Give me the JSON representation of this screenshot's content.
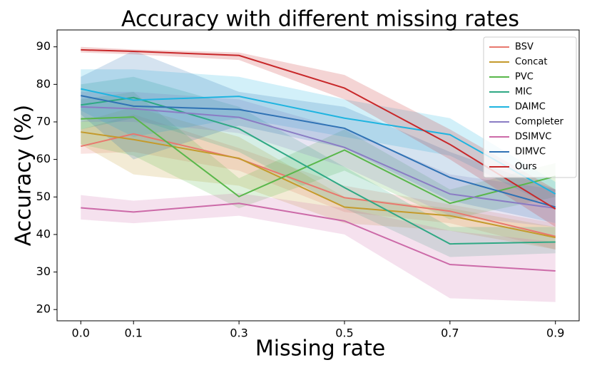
{
  "chart_data": {
    "type": "line",
    "title": "Accuracy with different missing rates",
    "x_label": "Missing rate",
    "y_label": "Accuracy (%)",
    "x": [
      0,
      0.1,
      0.3,
      0.5,
      0.7,
      0.9
    ],
    "xlim": [
      -0.045,
      0.945
    ],
    "xticks": [
      {
        "value": 0,
        "label": "0.0"
      },
      0.1,
      0.3,
      0.5,
      0.7,
      0.9
    ],
    "ylim": [
      17,
      94.5
    ],
    "yticks": [
      20,
      30,
      40,
      50,
      60,
      70,
      80,
      90
    ],
    "grid": false,
    "legend": "upper right",
    "series": [
      {
        "name": "BSV",
        "color": "#e8786e",
        "values": [
          63.5,
          66.8,
          60.2,
          49.8,
          46.2,
          39.5
        ],
        "lower": [
          61.5,
          62,
          57,
          46,
          43,
          36
        ],
        "upper": [
          68,
          72,
          63,
          53,
          48,
          43
        ]
      },
      {
        "name": "Concat",
        "color": "#c49a2c",
        "values": [
          67.3,
          65.3,
          60.3,
          47.3,
          45.0,
          39.2
        ],
        "lower": [
          64,
          56,
          53,
          43,
          41,
          36
        ],
        "upper": [
          70,
          74,
          66,
          50,
          47,
          42
        ]
      },
      {
        "name": "PVC",
        "color": "#59b74a",
        "values": [
          70.8,
          71.3,
          50.1,
          62.5,
          48.3,
          55.5
        ],
        "lower": [
          64,
          61,
          47,
          57,
          44,
          50
        ],
        "upper": [
          76,
          78,
          55,
          68,
          52,
          59
        ]
      },
      {
        "name": "MIC",
        "color": "#2fa884",
        "values": [
          74.5,
          76.5,
          68.2,
          52.5,
          37.5,
          38.0
        ],
        "lower": [
          68,
          71,
          62,
          47,
          34,
          35
        ],
        "upper": [
          80,
          82,
          74,
          58,
          42,
          42
        ]
      },
      {
        "name": "DAIMC",
        "color": "#1eb4e0",
        "values": [
          78.8,
          75.8,
          76.8,
          71.0,
          66.6,
          50.8
        ],
        "lower": [
          73,
          66,
          71,
          66,
          61,
          47
        ],
        "upper": [
          84,
          84,
          82,
          76,
          71,
          54
        ]
      },
      {
        "name": "Completer",
        "color": "#8a7cc4",
        "values": [
          74.0,
          73.5,
          71.2,
          63.2,
          50.8,
          47.0
        ],
        "lower": [
          70,
          70,
          67,
          58,
          45,
          42
        ],
        "upper": [
          78,
          78,
          76,
          68,
          56,
          52
        ]
      },
      {
        "name": "DSIMVC",
        "color": "#cc6aa8",
        "values": [
          47.1,
          46.0,
          48.3,
          43.6,
          32.0,
          30.3
        ],
        "lower": [
          44,
          43,
          45,
          40,
          23,
          22
        ],
        "upper": [
          50.5,
          49,
          51,
          47,
          41,
          38
        ]
      },
      {
        "name": "DIMVC",
        "color": "#2f72b4",
        "values": [
          77.0,
          74.2,
          73.3,
          68.3,
          55.2,
          47.3
        ],
        "lower": [
          72,
          60,
          69,
          63,
          49,
          43
        ],
        "upper": [
          82,
          89,
          78,
          74,
          62,
          52
        ]
      },
      {
        "name": "Ours",
        "color": "#c8282a",
        "values": [
          89.2,
          88.8,
          87.7,
          79.0,
          64.0,
          46.8
        ],
        "lower": [
          88.5,
          88,
          86.5,
          76,
          60,
          42
        ],
        "upper": [
          90,
          89.3,
          88.5,
          82.5,
          68,
          52
        ]
      }
    ]
  }
}
